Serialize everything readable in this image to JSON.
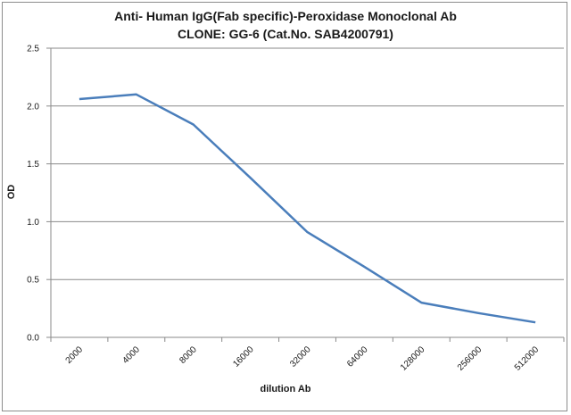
{
  "chart_data": {
    "type": "line",
    "title": "Anti- Human IgG(Fab specific)-Peroxidase Monoclonal Ab",
    "subtitle": "CLONE: GG-6 (Cat.No. SAB4200791)",
    "xlabel": "dilution Ab",
    "ylabel": "OD",
    "categories": [
      "2000",
      "4000",
      "8000",
      "16000",
      "32000",
      "64000",
      "128000",
      "256000",
      "512000"
    ],
    "series": [
      {
        "values": [
          2.06,
          2.1,
          1.84,
          1.38,
          0.91,
          0.61,
          0.3,
          0.21,
          0.13
        ],
        "color": "#4a7ebb"
      }
    ],
    "ylim": [
      0,
      2.5
    ],
    "yticks": [
      "0.0",
      "0.5",
      "1.0",
      "1.5",
      "2.0",
      "2.5"
    ],
    "grid": true,
    "legend": "none"
  }
}
